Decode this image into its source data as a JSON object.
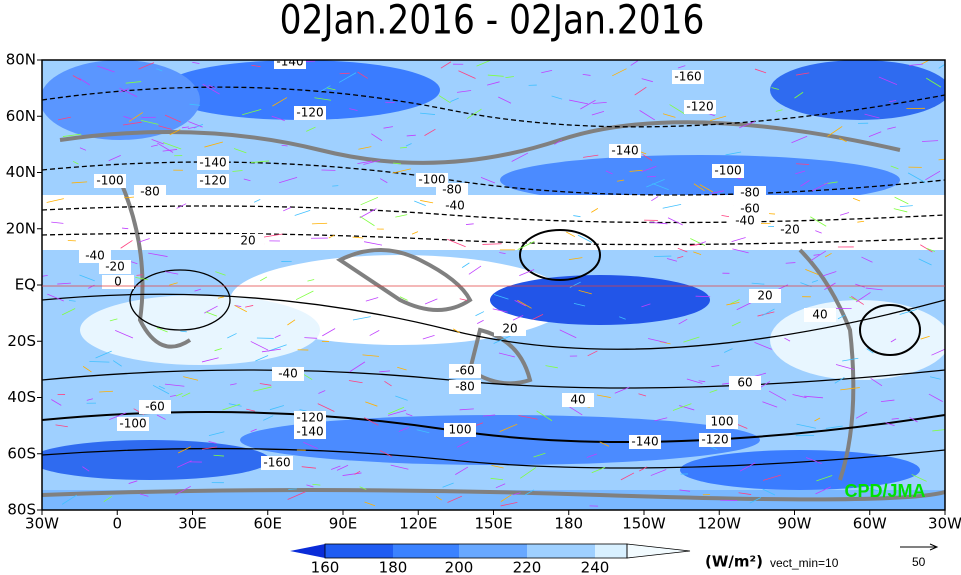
{
  "title": "02Jan.2016 - 02Jan.2016",
  "lat_labels": [
    "80N",
    "60N",
    "40N",
    "20N",
    "EQ",
    "20S",
    "40S",
    "60S",
    "80S"
  ],
  "lon_labels": [
    "30W",
    "0",
    "30E",
    "60E",
    "90E",
    "120E",
    "150E",
    "180",
    "150W",
    "120W",
    "90W",
    "60W",
    "30W"
  ],
  "colorbar": {
    "labels": [
      "160",
      "180",
      "200",
      "220",
      "240"
    ],
    "unit": "(W/m²)"
  },
  "vector_note": "vect_min=10",
  "vector_ref": "50",
  "credit": "CPD/JMA",
  "contour_labels": [
    "-140",
    "-160",
    "-120",
    "-120",
    "-140",
    "-140",
    "-120",
    "-100",
    "-100",
    "-80",
    "-100",
    "-80",
    "-40",
    "-80",
    "-60",
    "-40",
    "-20",
    "20",
    "-40",
    "-20",
    "0",
    "20",
    "40",
    "20",
    "-40",
    "-60",
    "-80",
    "60",
    "40",
    "-60",
    "-100",
    "-120",
    "-140",
    "100",
    "100",
    "-140",
    "-120",
    "-160"
  ]
}
